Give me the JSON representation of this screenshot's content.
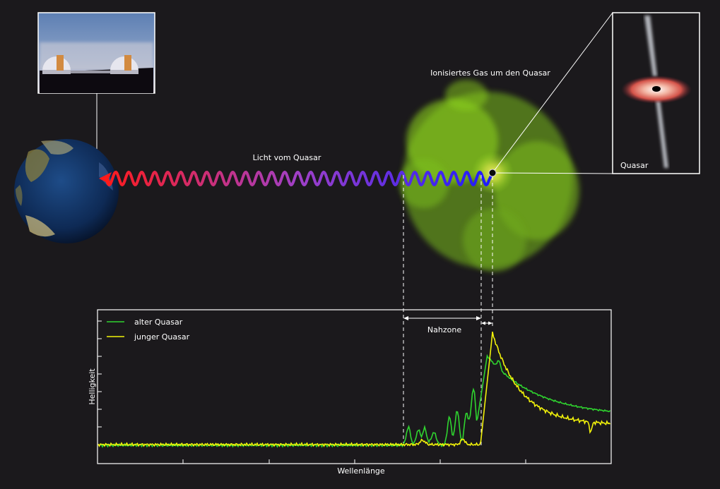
{
  "labels": {
    "gas": "Ionisiertes Gas um den Quasar",
    "light": "Licht vom Quasar",
    "quasar": "Quasar",
    "nahzone": "Nahzone",
    "y_axis": "Helligkeit",
    "x_axis": "Wellenlänge"
  },
  "legend": [
    {
      "name": "alter Quasar",
      "color": "#2fd42f"
    },
    {
      "name": "junger Quasar",
      "color": "#f2f20a"
    }
  ],
  "colors": {
    "background": "#1b191c",
    "wave_start": "#ff1a1a",
    "wave_mid": "#a040c8",
    "wave_end": "#1a1aff",
    "gas_cloud": "#8cd11e",
    "frame": "#ffffff"
  },
  "icons": [
    "telescope-photo",
    "earth-globe",
    "quasar-disk-jet",
    "gas-cloud",
    "light-wave"
  ]
}
